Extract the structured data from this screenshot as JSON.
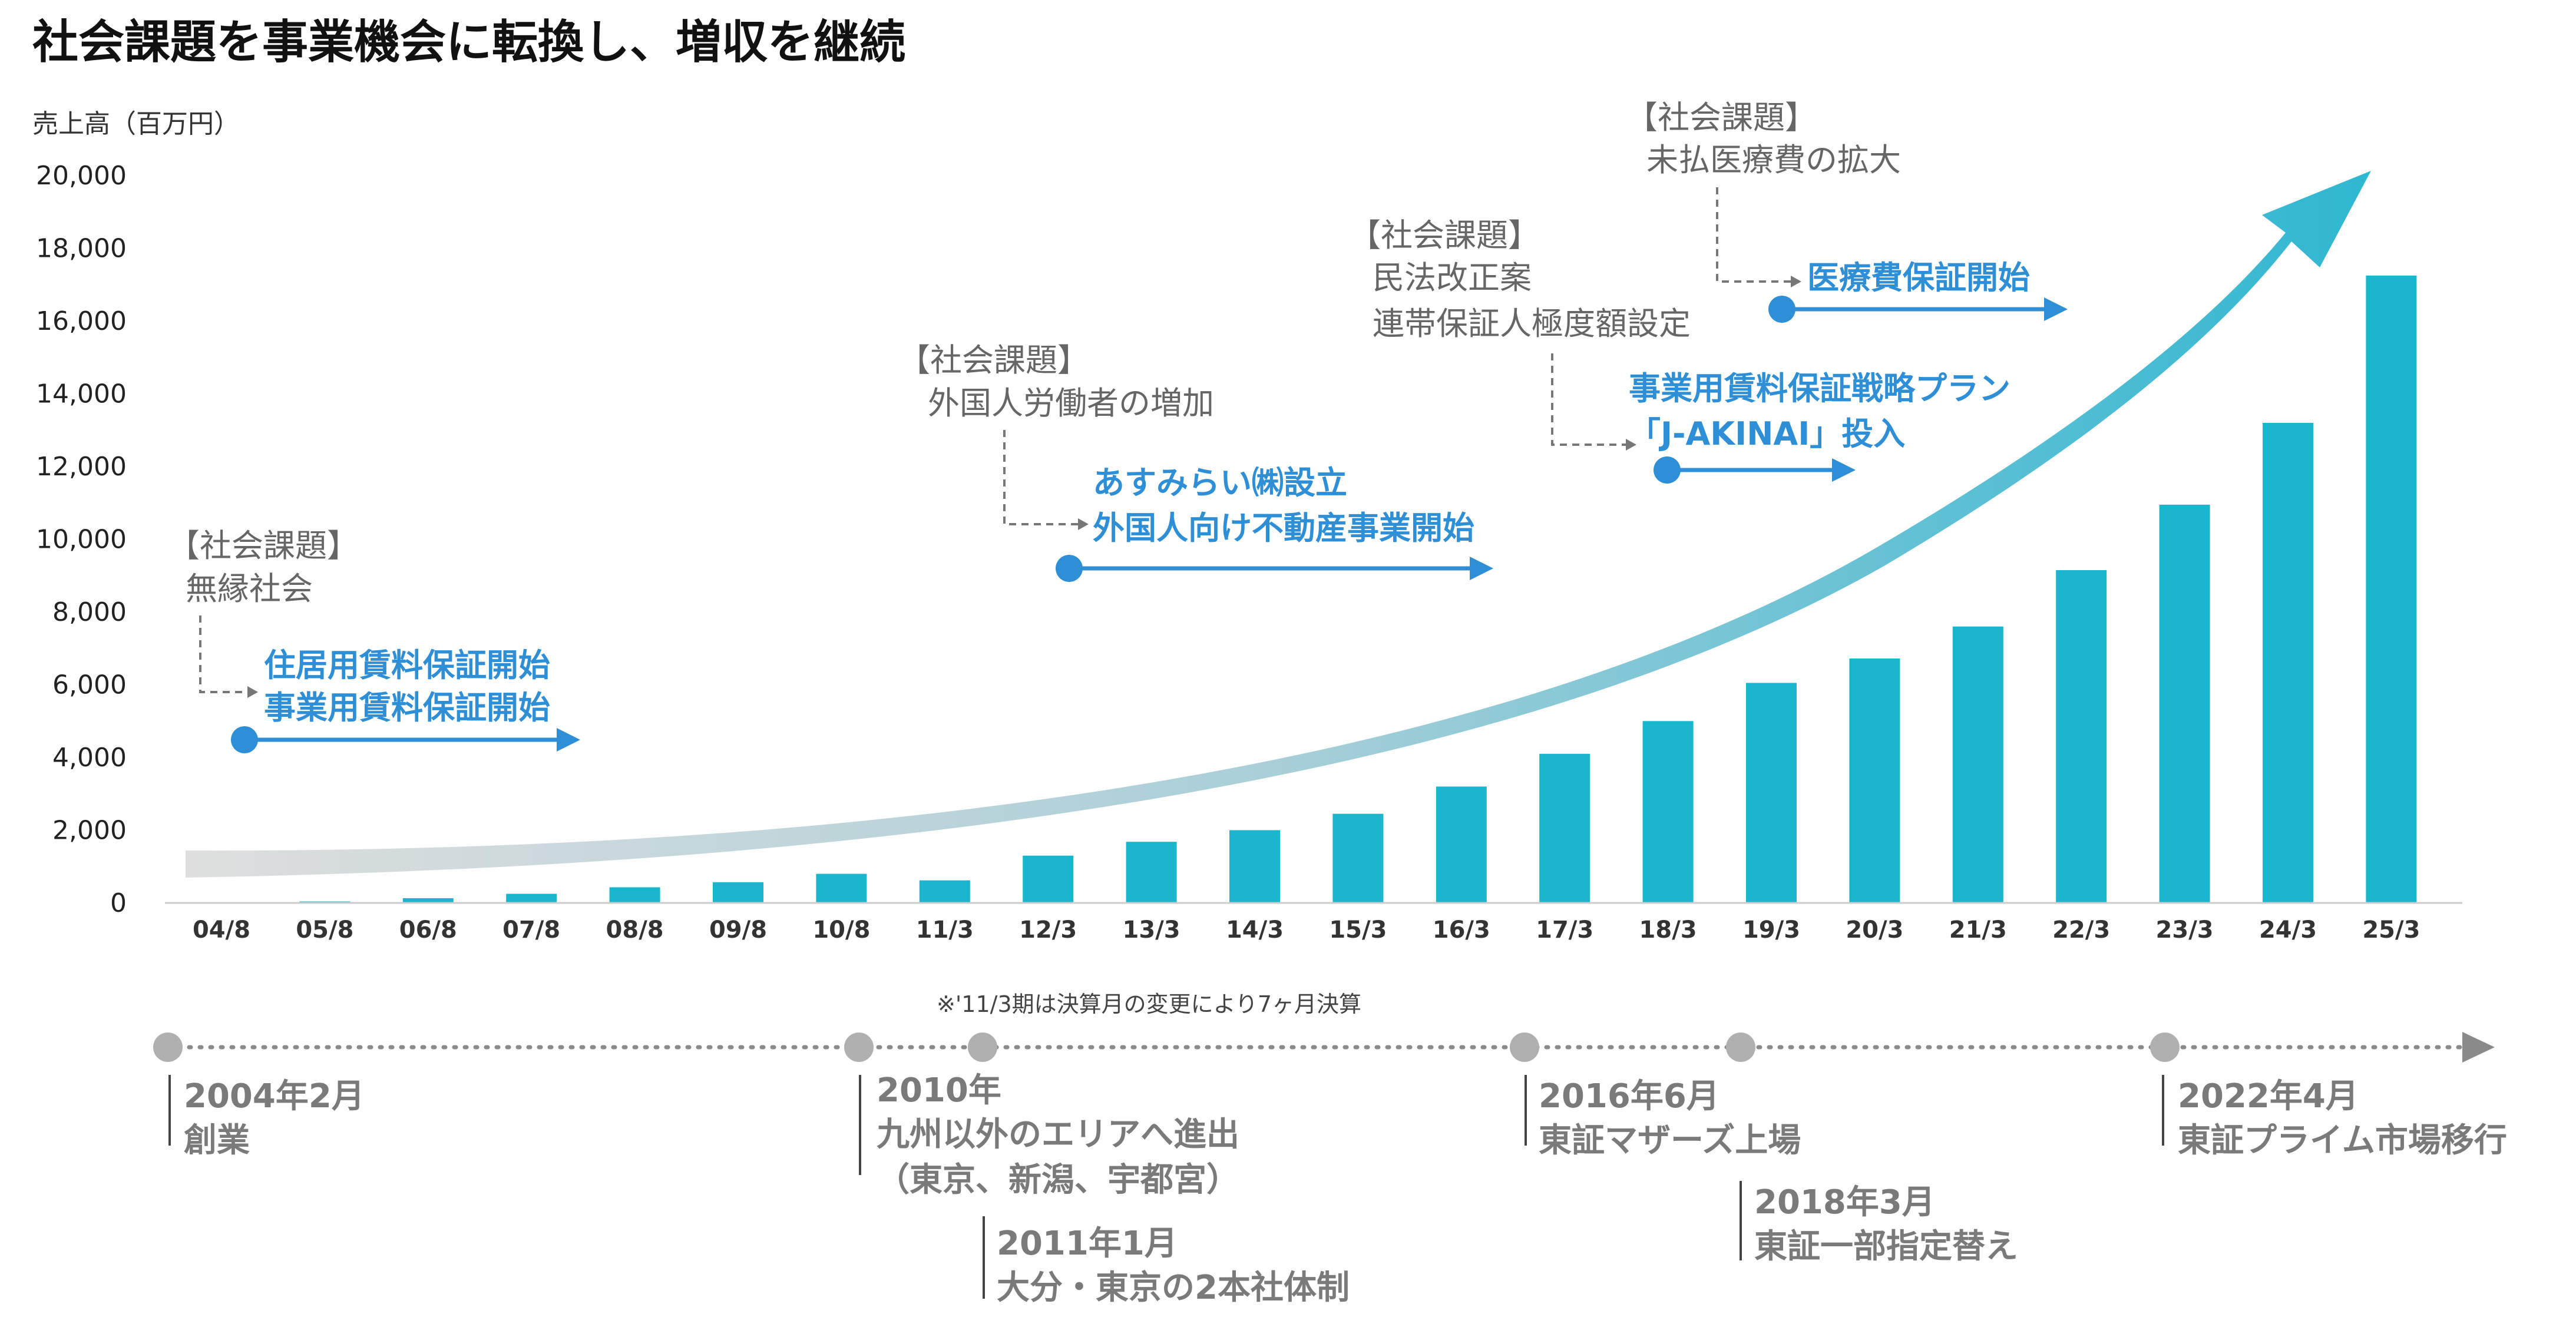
{
  "title": "社会課題を事業機会に転換し、増収を継続",
  "colors": {
    "bar": "#1ab6cd",
    "event": "#2e8fd6",
    "issue": "#666666",
    "milestone": "#7a7a7a",
    "arrow_start": "#d9d9d9",
    "arrow_end": "#2fb7d1"
  },
  "chart_data": {
    "type": "bar",
    "ylabel": "売上高（百万円）",
    "xlabel": "",
    "ylim": [
      0,
      20000
    ],
    "yticks": [
      "0",
      "2,000",
      "4,000",
      "6,000",
      "8,000",
      "10,000",
      "12,000",
      "14,000",
      "16,000",
      "18,000",
      "20,000"
    ],
    "ytick_values": [
      0,
      2000,
      4000,
      6000,
      8000,
      10000,
      12000,
      14000,
      16000,
      18000,
      20000
    ],
    "categories": [
      "04/8",
      "05/8",
      "06/8",
      "07/8",
      "08/8",
      "09/8",
      "10/8",
      "11/3",
      "12/3",
      "13/3",
      "14/3",
      "15/3",
      "16/3",
      "17/3",
      "18/3",
      "19/3",
      "20/3",
      "21/3",
      "22/3",
      "23/3",
      "24/3",
      "25/3"
    ],
    "values": [
      5,
      40,
      130,
      250,
      430,
      570,
      800,
      620,
      1300,
      1680,
      2000,
      2450,
      3200,
      4100,
      5000,
      6050,
      6720,
      7600,
      9150,
      10950,
      13200,
      17250
    ],
    "grid": false,
    "legend": "none"
  },
  "annotations": [
    {
      "issue_header": "【社会課題】",
      "issue_lines": [
        "無縁社会"
      ],
      "events": [
        "住居用賃料保証開始",
        "事業用賃料保証開始"
      ]
    },
    {
      "issue_header": "【社会課題】",
      "issue_lines": [
        "外国人労働者の増加"
      ],
      "events": [
        "あすみらい㈱設立",
        "外国人向け不動産事業開始"
      ]
    },
    {
      "issue_header": "【社会課題】",
      "issue_lines": [
        "民法改正案",
        "連帯保証人極度額設定"
      ],
      "events": [
        "事業用賃料保証戦略プラン",
        "「J-AKINAI」投入"
      ]
    },
    {
      "issue_header": "【社会課題】",
      "issue_lines": [
        "未払医療費の拡大"
      ],
      "events": [
        "医療費保証開始"
      ]
    }
  ],
  "note": "※'11/3期は決算月の変更により7ヶ月決算",
  "timeline": [
    {
      "date": "2004年2月",
      "lines": [
        "創業"
      ]
    },
    {
      "date": "2010年",
      "lines": [
        "九州以外のエリアへ進出",
        "（東京、新潟、宇都宮）"
      ]
    },
    {
      "date": "2011年1月",
      "lines": [
        "大分・東京の2本社体制"
      ]
    },
    {
      "date": "2016年6月",
      "lines": [
        "東証マザーズ上場"
      ]
    },
    {
      "date": "2018年3月",
      "lines": [
        "東証一部指定替え"
      ]
    },
    {
      "date": "2022年4月",
      "lines": [
        "東証プライム市場移行"
      ]
    }
  ]
}
